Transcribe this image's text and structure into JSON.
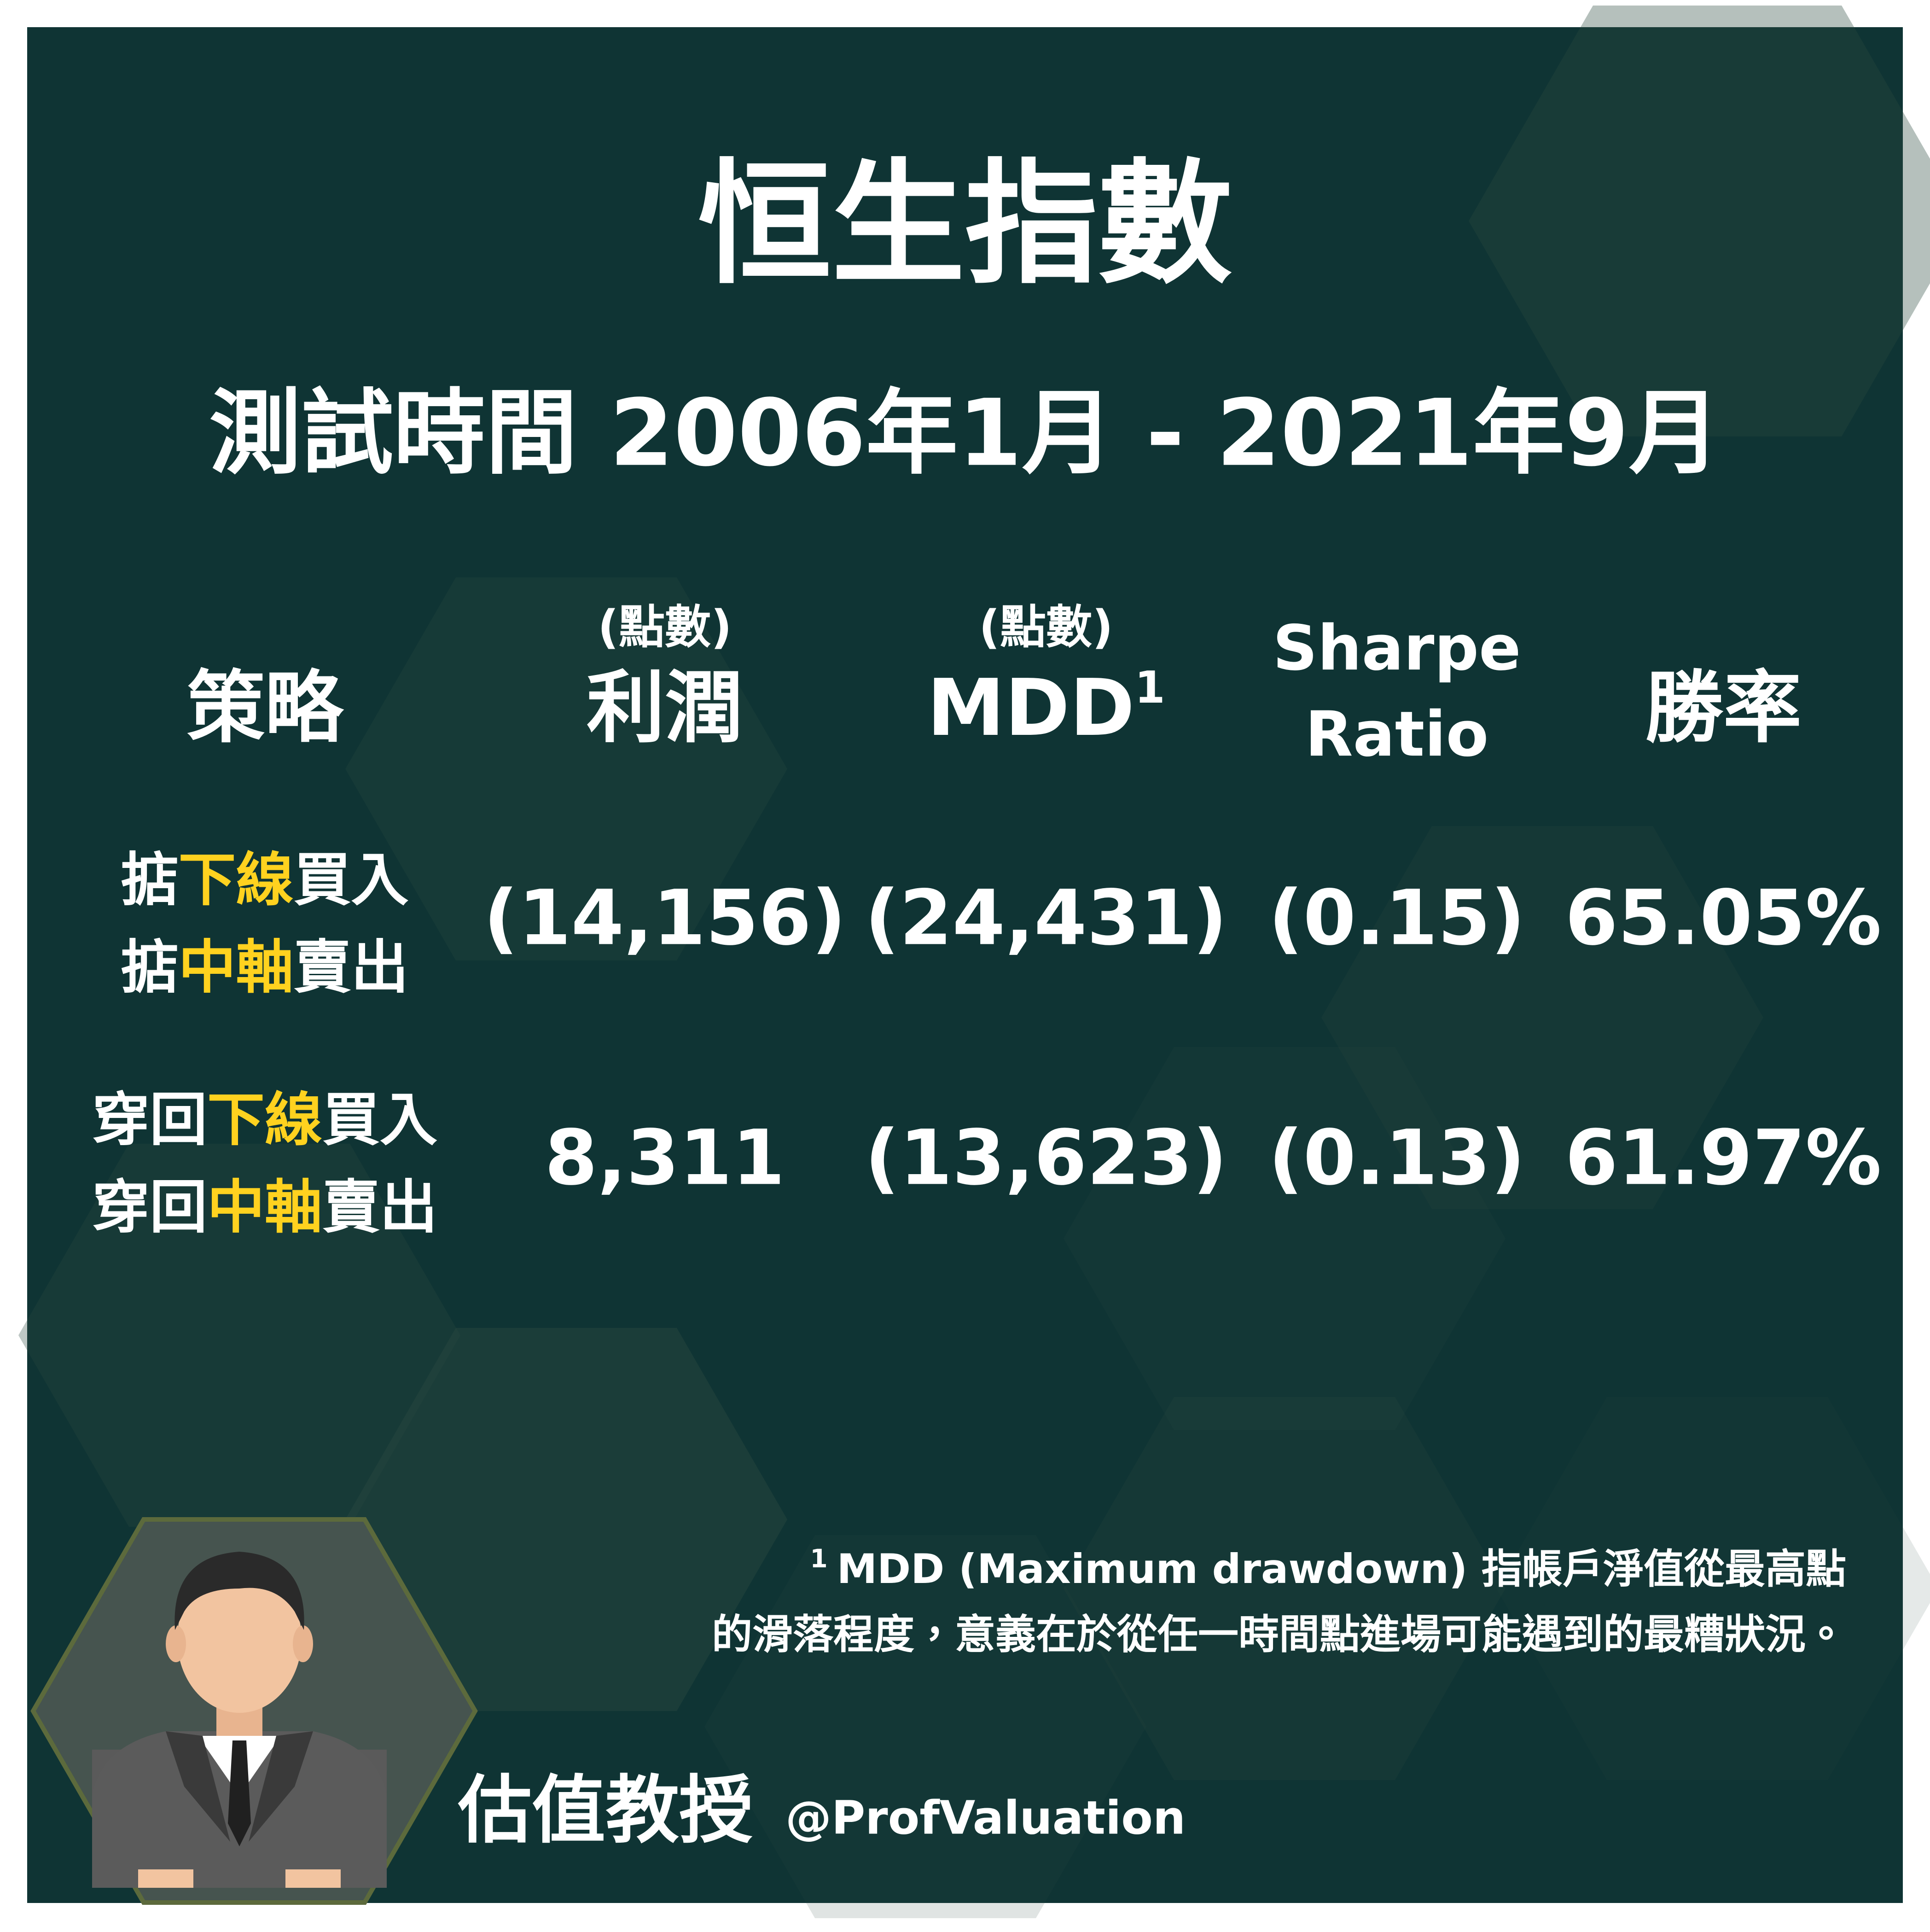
{
  "title": "恒生指數",
  "subtitle": "測試時間 2006年1月 - 2021年9月",
  "table": {
    "headers": [
      {
        "label": "策略"
      },
      {
        "unit": "(點數)",
        "label": "利潤"
      },
      {
        "unit": "(點數)",
        "label": "MDD",
        "sup": "1"
      },
      {
        "lines": [
          "Sharpe",
          "Ratio"
        ]
      },
      {
        "label": "勝率"
      }
    ],
    "rows": [
      {
        "strategy": [
          [
            "掂",
            "下線",
            "買入"
          ],
          [
            "掂",
            "中軸",
            "賣出"
          ]
        ],
        "cells": [
          "(14,156)",
          "(24,431)",
          "(0.15)",
          "65.05%"
        ]
      },
      {
        "strategy": [
          [
            "穿回",
            "下線",
            "買入"
          ],
          [
            "穿回",
            "中軸",
            "賣出"
          ]
        ],
        "cells": [
          "8,311",
          "(13,623)",
          "(0.13)",
          "61.97%"
        ]
      }
    ]
  },
  "footnote": {
    "marker": "1",
    "lines": [
      "MDD (Maximum drawdown) 指帳戶淨值從最高點",
      "的滑落程度，意義在於從任一時間點進場可能遇到的最糟狀況。"
    ]
  },
  "author": {
    "name": "估值教授",
    "handle": "@ProfValuation"
  }
}
